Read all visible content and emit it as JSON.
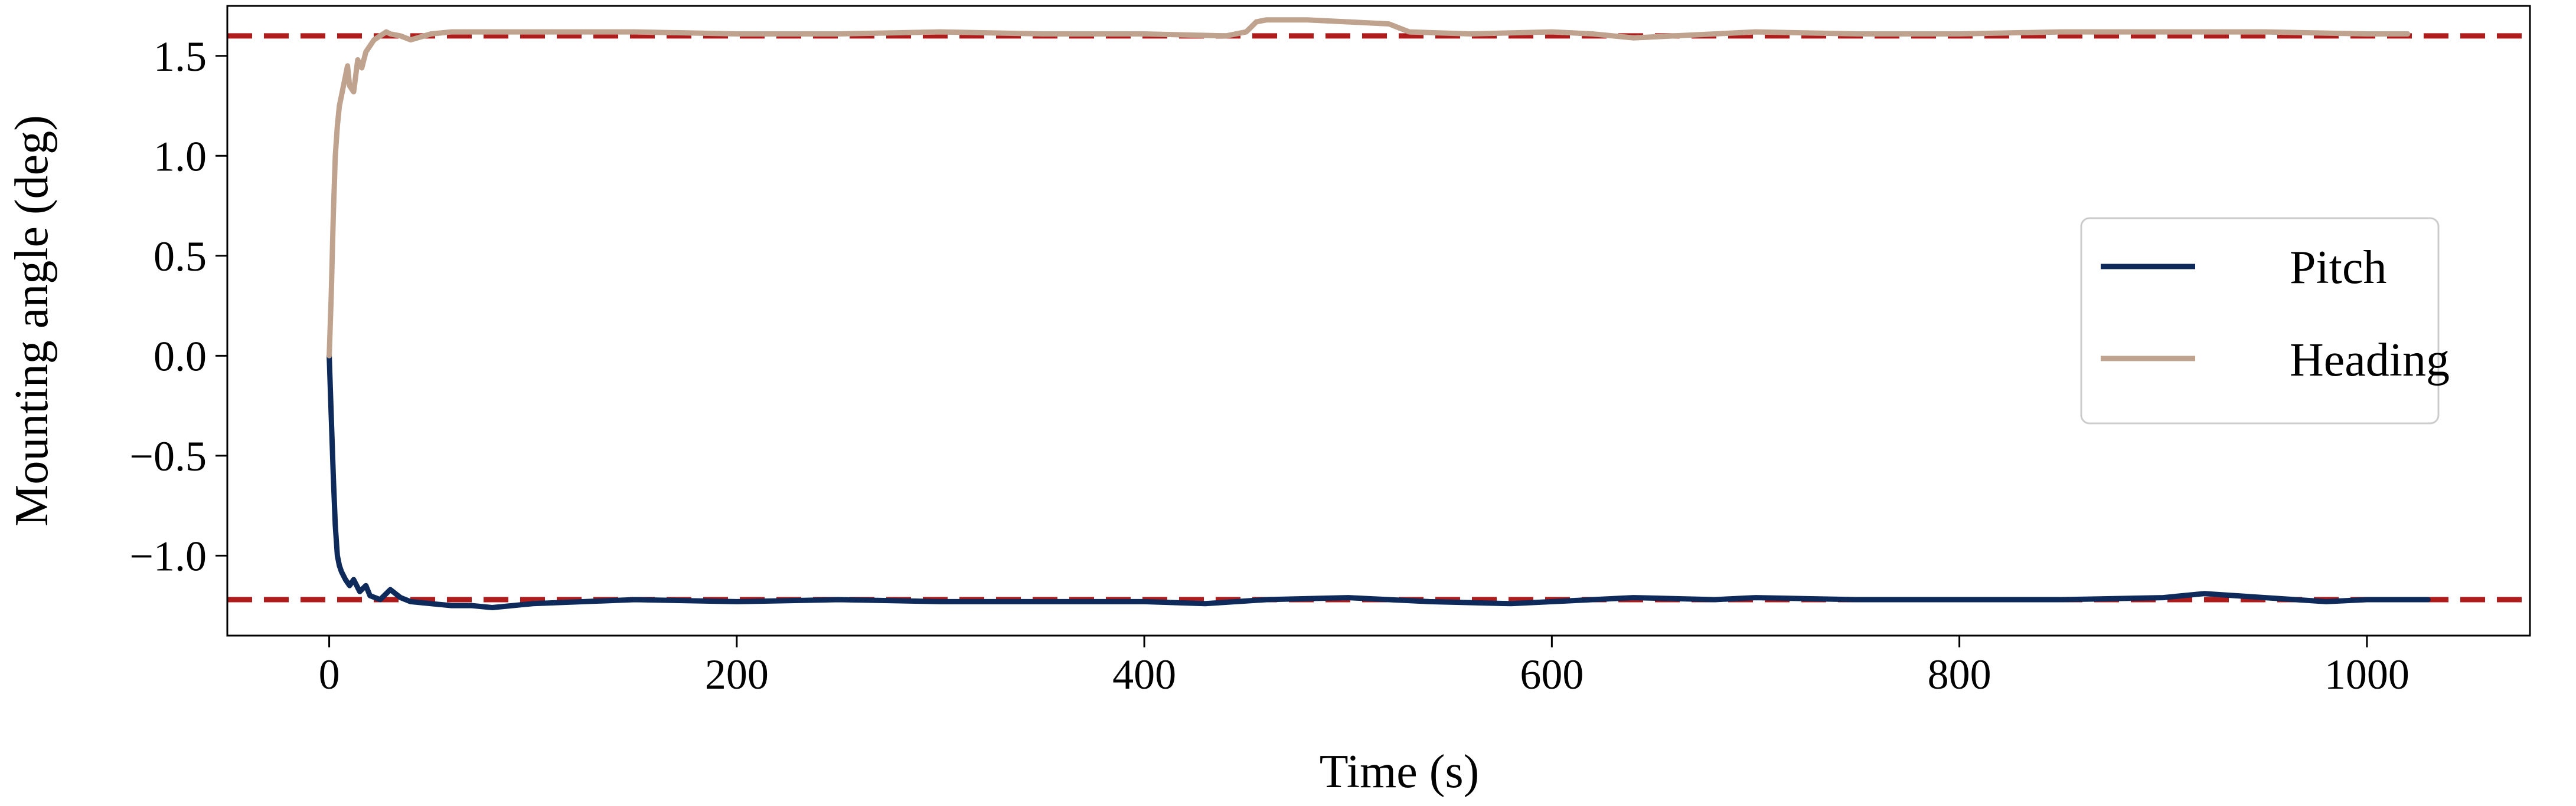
{
  "chart_data": {
    "type": "line",
    "title": "",
    "xlabel": "Time (s)",
    "ylabel": "Mounting angle (deg)",
    "xlim": [
      -50,
      1080
    ],
    "ylim": [
      -1.4,
      1.75
    ],
    "xticks": [
      0,
      200,
      400,
      600,
      800,
      1000
    ],
    "xtick_labels": [
      "0",
      "200",
      "400",
      "600",
      "800",
      "1000"
    ],
    "yticks": [
      -1.0,
      -0.5,
      0.0,
      0.5,
      1.0,
      1.5
    ],
    "ytick_labels": [
      "−1.0",
      "−0.5",
      "0.0",
      "0.5",
      "1.0",
      "1.5"
    ],
    "grid": false,
    "legend_position": "center-right",
    "reference_lines": [
      {
        "y": 1.6,
        "color": "#b01c1c",
        "style": "dashed"
      },
      {
        "y": -1.22,
        "color": "#b01c1c",
        "style": "dashed"
      }
    ],
    "series": [
      {
        "name": "Pitch",
        "color": "#0e2a5a",
        "x": [
          0,
          1,
          2,
          3,
          4,
          5,
          6,
          8,
          10,
          12,
          15,
          18,
          20,
          25,
          30,
          35,
          40,
          50,
          60,
          70,
          80,
          100,
          150,
          200,
          250,
          300,
          350,
          400,
          430,
          460,
          500,
          540,
          580,
          620,
          640,
          680,
          700,
          750,
          800,
          850,
          900,
          920,
          950,
          980,
          1000,
          1030
        ],
        "y": [
          0.0,
          -0.3,
          -0.6,
          -0.85,
          -1.0,
          -1.05,
          -1.08,
          -1.12,
          -1.15,
          -1.12,
          -1.18,
          -1.15,
          -1.2,
          -1.22,
          -1.17,
          -1.21,
          -1.23,
          -1.24,
          -1.25,
          -1.25,
          -1.26,
          -1.24,
          -1.22,
          -1.23,
          -1.22,
          -1.23,
          -1.23,
          -1.23,
          -1.24,
          -1.22,
          -1.21,
          -1.23,
          -1.24,
          -1.22,
          -1.21,
          -1.22,
          -1.21,
          -1.22,
          -1.22,
          -1.22,
          -1.21,
          -1.19,
          -1.21,
          -1.23,
          -1.22,
          -1.22
        ]
      },
      {
        "name": "Heading",
        "color": "#bfa38e",
        "x": [
          0,
          1,
          2,
          3,
          4,
          5,
          6,
          7,
          8,
          9,
          10,
          12,
          14,
          16,
          18,
          20,
          22,
          25,
          28,
          30,
          35,
          40,
          50,
          60,
          80,
          100,
          150,
          200,
          250,
          300,
          350,
          400,
          440,
          450,
          455,
          460,
          480,
          500,
          520,
          530,
          560,
          600,
          620,
          630,
          640,
          660,
          700,
          750,
          800,
          850,
          900,
          950,
          1000,
          1020
        ],
        "y": [
          0.0,
          0.3,
          0.7,
          1.0,
          1.15,
          1.25,
          1.3,
          1.35,
          1.4,
          1.45,
          1.35,
          1.32,
          1.48,
          1.44,
          1.52,
          1.55,
          1.58,
          1.6,
          1.62,
          1.61,
          1.6,
          1.58,
          1.61,
          1.62,
          1.62,
          1.62,
          1.62,
          1.61,
          1.61,
          1.62,
          1.61,
          1.61,
          1.6,
          1.62,
          1.67,
          1.68,
          1.68,
          1.67,
          1.66,
          1.62,
          1.61,
          1.62,
          1.61,
          1.6,
          1.59,
          1.6,
          1.62,
          1.61,
          1.61,
          1.62,
          1.62,
          1.62,
          1.61,
          1.61
        ]
      }
    ]
  }
}
